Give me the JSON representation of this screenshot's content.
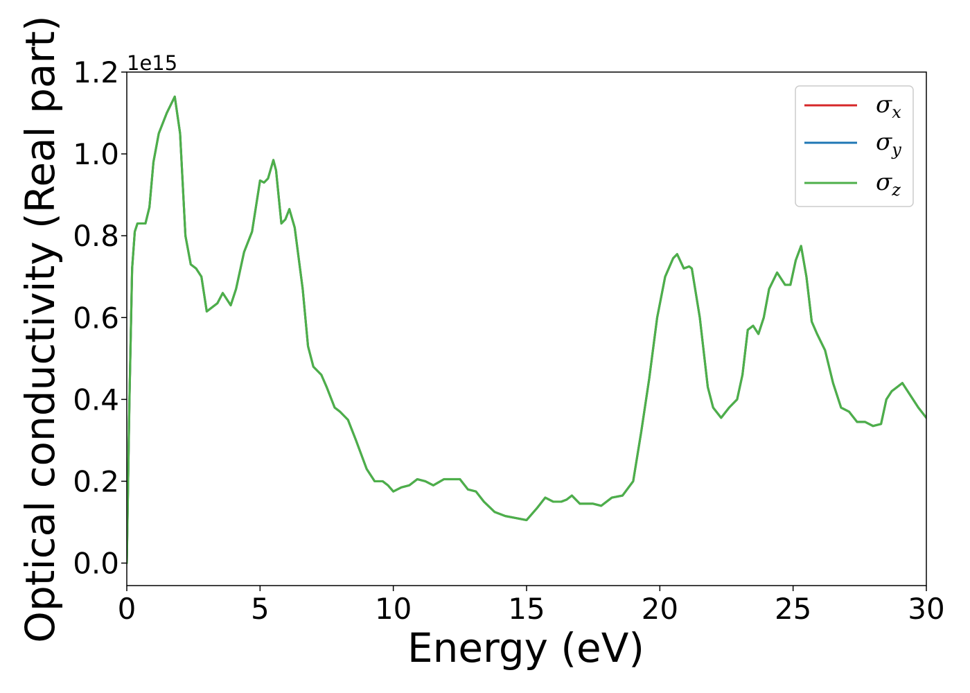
{
  "chart_data": {
    "type": "line",
    "title": "",
    "xlabel": "Energy (eV)",
    "ylabel": "Optical conductivity (Real part)",
    "y_offset_text": "1e15",
    "xlim": [
      0,
      30
    ],
    "ylim": [
      -0.055,
      1.2
    ],
    "xticks": [
      0,
      5,
      10,
      15,
      20,
      25,
      30
    ],
    "yticks": [
      0.0,
      0.2,
      0.4,
      0.6,
      0.8,
      1.0,
      1.2
    ],
    "xtick_labels": [
      "0",
      "5",
      "10",
      "15",
      "20",
      "25",
      "30"
    ],
    "ytick_labels": [
      "0.0",
      "0.2",
      "0.4",
      "0.6",
      "0.8",
      "1.0",
      "1.2"
    ],
    "grid": false,
    "legend": {
      "position": "top-right",
      "entries": [
        {
          "symbol": "σ",
          "sub": "x",
          "color": "#d62728"
        },
        {
          "symbol": "σ",
          "sub": "y",
          "color": "#1f77b4"
        },
        {
          "symbol": "σ",
          "sub": "z",
          "color": "#4daf4a"
        }
      ]
    },
    "x": [
      0,
      0.1,
      0.2,
      0.3,
      0.4,
      0.5,
      0.7,
      0.85,
      1.0,
      1.2,
      1.5,
      1.8,
      2.0,
      2.2,
      2.4,
      2.6,
      2.8,
      3.0,
      3.1,
      3.4,
      3.6,
      3.7,
      3.9,
      4.1,
      4.4,
      4.7,
      5.0,
      5.15,
      5.3,
      5.5,
      5.6,
      5.8,
      5.95,
      6.1,
      6.3,
      6.6,
      6.8,
      7.0,
      7.3,
      7.5,
      7.8,
      8.0,
      8.3,
      8.6,
      9.0,
      9.3,
      9.6,
      9.8,
      10.0,
      10.3,
      10.6,
      10.9,
      11.2,
      11.5,
      11.9,
      12.3,
      12.5,
      12.8,
      13.1,
      13.4,
      13.8,
      14.2,
      14.6,
      15.0,
      15.4,
      15.7,
      16.0,
      16.3,
      16.5,
      16.7,
      17.0,
      17.2,
      17.5,
      17.8,
      18.2,
      18.6,
      19.0,
      19.3,
      19.6,
      19.9,
      20.2,
      20.5,
      20.65,
      20.9,
      21.1,
      21.2,
      21.5,
      21.8,
      22.0,
      22.3,
      22.6,
      22.9,
      23.1,
      23.3,
      23.5,
      23.7,
      23.9,
      24.1,
      24.4,
      24.7,
      24.9,
      25.1,
      25.3,
      25.5,
      25.7,
      25.9,
      26.2,
      26.5,
      26.8,
      27.1,
      27.4,
      27.7,
      28.0,
      28.3,
      28.5,
      28.7,
      28.9,
      29.1,
      29.3,
      29.5,
      29.7,
      30.0
    ],
    "series": [
      {
        "name": "σx",
        "color": "#d62728",
        "values": [
          0.0,
          0.4,
          0.72,
          0.81,
          0.83,
          0.83,
          0.83,
          0.87,
          0.98,
          1.05,
          1.1,
          1.14,
          1.05,
          0.8,
          0.73,
          0.72,
          0.7,
          0.615,
          0.62,
          0.635,
          0.66,
          0.65,
          0.63,
          0.67,
          0.76,
          0.81,
          0.935,
          0.93,
          0.94,
          0.985,
          0.96,
          0.83,
          0.84,
          0.865,
          0.82,
          0.67,
          0.53,
          0.48,
          0.46,
          0.43,
          0.38,
          0.37,
          0.35,
          0.3,
          0.23,
          0.2,
          0.2,
          0.19,
          0.175,
          0.185,
          0.19,
          0.205,
          0.2,
          0.19,
          0.205,
          0.205,
          0.205,
          0.18,
          0.175,
          0.15,
          0.125,
          0.115,
          0.11,
          0.105,
          0.135,
          0.16,
          0.15,
          0.15,
          0.155,
          0.165,
          0.145,
          0.145,
          0.145,
          0.14,
          0.16,
          0.165,
          0.2,
          0.32,
          0.45,
          0.6,
          0.7,
          0.745,
          0.755,
          0.72,
          0.725,
          0.72,
          0.6,
          0.43,
          0.38,
          0.355,
          0.38,
          0.4,
          0.46,
          0.57,
          0.58,
          0.56,
          0.6,
          0.67,
          0.71,
          0.68,
          0.68,
          0.74,
          0.775,
          0.7,
          0.59,
          0.56,
          0.52,
          0.44,
          0.38,
          0.37,
          0.345,
          0.345,
          0.335,
          0.34,
          0.4,
          0.42,
          0.43,
          0.44,
          0.42,
          0.4,
          0.38,
          0.355
        ]
      },
      {
        "name": "σy",
        "color": "#1f77b4",
        "values": [
          0.0,
          0.4,
          0.72,
          0.81,
          0.83,
          0.83,
          0.83,
          0.87,
          0.98,
          1.05,
          1.1,
          1.14,
          1.05,
          0.8,
          0.73,
          0.72,
          0.7,
          0.615,
          0.62,
          0.635,
          0.66,
          0.65,
          0.63,
          0.67,
          0.76,
          0.81,
          0.935,
          0.93,
          0.94,
          0.985,
          0.96,
          0.83,
          0.84,
          0.865,
          0.82,
          0.67,
          0.53,
          0.48,
          0.46,
          0.43,
          0.38,
          0.37,
          0.35,
          0.3,
          0.23,
          0.2,
          0.2,
          0.19,
          0.175,
          0.185,
          0.19,
          0.205,
          0.2,
          0.19,
          0.205,
          0.205,
          0.205,
          0.18,
          0.175,
          0.15,
          0.125,
          0.115,
          0.11,
          0.105,
          0.135,
          0.16,
          0.15,
          0.15,
          0.155,
          0.165,
          0.145,
          0.145,
          0.145,
          0.14,
          0.16,
          0.165,
          0.2,
          0.32,
          0.45,
          0.6,
          0.7,
          0.745,
          0.755,
          0.72,
          0.725,
          0.72,
          0.6,
          0.43,
          0.38,
          0.355,
          0.38,
          0.4,
          0.46,
          0.57,
          0.58,
          0.56,
          0.6,
          0.67,
          0.71,
          0.68,
          0.68,
          0.74,
          0.775,
          0.7,
          0.59,
          0.56,
          0.52,
          0.44,
          0.38,
          0.37,
          0.345,
          0.345,
          0.335,
          0.34,
          0.4,
          0.42,
          0.43,
          0.44,
          0.42,
          0.4,
          0.38,
          0.355
        ]
      },
      {
        "name": "σz",
        "color": "#4daf4a",
        "values": [
          0.0,
          0.4,
          0.72,
          0.81,
          0.83,
          0.83,
          0.83,
          0.87,
          0.98,
          1.05,
          1.1,
          1.14,
          1.05,
          0.8,
          0.73,
          0.72,
          0.7,
          0.615,
          0.62,
          0.635,
          0.66,
          0.65,
          0.63,
          0.67,
          0.76,
          0.81,
          0.935,
          0.93,
          0.94,
          0.985,
          0.96,
          0.83,
          0.84,
          0.865,
          0.82,
          0.67,
          0.53,
          0.48,
          0.46,
          0.43,
          0.38,
          0.37,
          0.35,
          0.3,
          0.23,
          0.2,
          0.2,
          0.19,
          0.175,
          0.185,
          0.19,
          0.205,
          0.2,
          0.19,
          0.205,
          0.205,
          0.205,
          0.18,
          0.175,
          0.15,
          0.125,
          0.115,
          0.11,
          0.105,
          0.135,
          0.16,
          0.15,
          0.15,
          0.155,
          0.165,
          0.145,
          0.145,
          0.145,
          0.14,
          0.16,
          0.165,
          0.2,
          0.32,
          0.45,
          0.6,
          0.7,
          0.745,
          0.755,
          0.72,
          0.725,
          0.72,
          0.6,
          0.43,
          0.38,
          0.355,
          0.38,
          0.4,
          0.46,
          0.57,
          0.58,
          0.56,
          0.6,
          0.67,
          0.71,
          0.68,
          0.68,
          0.74,
          0.775,
          0.7,
          0.59,
          0.56,
          0.52,
          0.44,
          0.38,
          0.37,
          0.345,
          0.345,
          0.335,
          0.34,
          0.4,
          0.42,
          0.43,
          0.44,
          0.42,
          0.4,
          0.38,
          0.355
        ]
      }
    ]
  }
}
